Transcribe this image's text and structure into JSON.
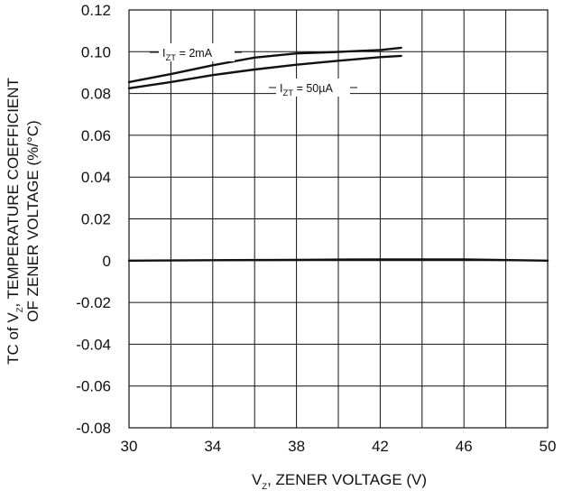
{
  "chart_data": {
    "type": "line",
    "title": "",
    "xlabel": {
      "main": "V",
      "sub": "Z",
      "rest": ", ZENER VOLTAGE (V)"
    },
    "ylabel": {
      "line1": {
        "pre": "TC of V",
        "sub": "Z",
        "post": ", TEMPERATURE COEFFICIENT"
      },
      "line2": "OF ZENER VOLTAGE (%/°C)"
    },
    "xlim": [
      30,
      50
    ],
    "ylim": [
      -0.08,
      0.12
    ],
    "x_ticks": [
      30,
      34,
      38,
      42,
      46,
      50
    ],
    "x_tick_labels": [
      "30",
      "34",
      "38",
      "42",
      "46",
      "50"
    ],
    "y_ticks": [
      0.12,
      0.1,
      0.08,
      0.06,
      0.04,
      0.02,
      0,
      -0.02,
      -0.04,
      -0.06,
      -0.08
    ],
    "y_tick_labels": [
      "0.12",
      "0.10",
      "0.08",
      "0.06",
      "0.04",
      "0.02",
      "0",
      "-0.02",
      "-0.04",
      "-0.06",
      "-0.08"
    ],
    "grid": true,
    "x_grid_step": 2,
    "y_grid_step": 0.02,
    "series": [
      {
        "label": {
          "main": "I",
          "sub": "ZT",
          "rest": " = 2mA"
        },
        "x": [
          30,
          32,
          34,
          36,
          38,
          40,
          42,
          43
        ],
        "y": [
          0.0855,
          0.0893,
          0.0935,
          0.0972,
          0.0992,
          0.0999,
          0.1008,
          0.1019
        ]
      },
      {
        "label": {
          "main": "I",
          "sub": "ZT",
          "rest": " = 50µA"
        },
        "x": [
          30,
          32,
          34,
          36,
          38,
          40,
          42,
          43
        ],
        "y": [
          0.0825,
          0.0855,
          0.0888,
          0.0915,
          0.0938,
          0.0957,
          0.0974,
          0.098
        ]
      },
      {
        "label": null,
        "x": [
          30,
          34,
          38,
          42,
          46,
          50
        ],
        "y": [
          0,
          0.0002,
          0.0004,
          0.0006,
          0.0006,
          0
        ]
      }
    ],
    "colors": {
      "line": "#111111",
      "grid": "#111111",
      "background": "#ffffff"
    }
  }
}
